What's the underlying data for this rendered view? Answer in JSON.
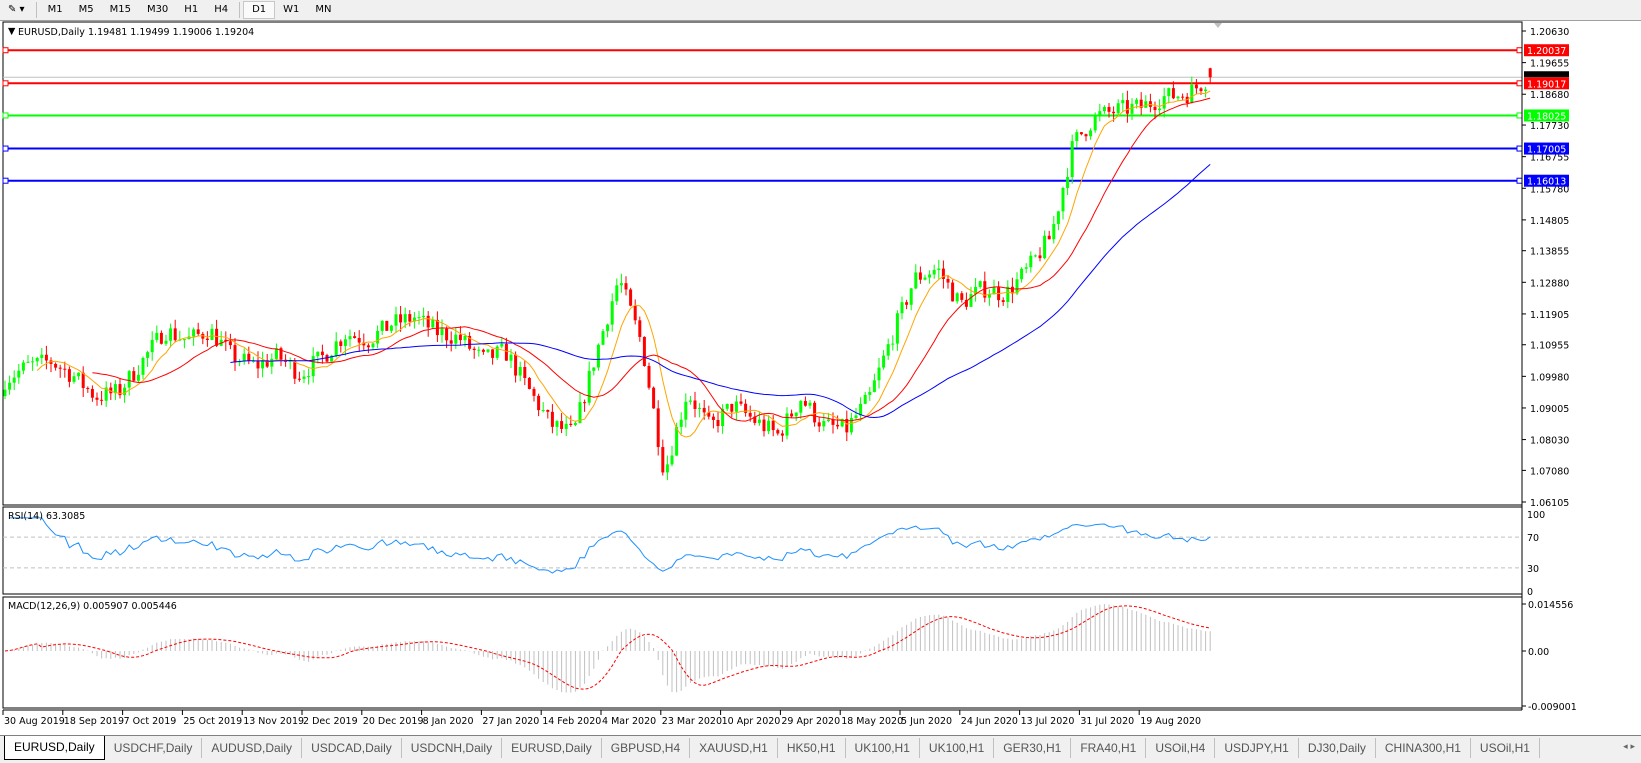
{
  "toolbar": {
    "timeframes": [
      "M1",
      "M5",
      "M15",
      "M30",
      "H1",
      "H4",
      "D1",
      "W1",
      "MN"
    ],
    "active": "D1"
  },
  "chart": {
    "symbol_label": "EURUSD,Daily",
    "ohlc_label": "1.19481 1.19499 1.19006 1.19204",
    "current_price": "1.19204",
    "price_ticks": [
      "1.20630",
      "1.19655",
      "1.18680",
      "1.17730",
      "1.16755",
      "1.15780",
      "1.14805",
      "1.13855",
      "1.12880",
      "1.11905",
      "1.10955",
      "1.09980",
      "1.09005",
      "1.08030",
      "1.07080",
      "1.06105"
    ],
    "levels": [
      {
        "price": "1.20037",
        "color": "#ff0000"
      },
      {
        "price": "1.19017",
        "color": "#ff0000"
      },
      {
        "price": "1.18025",
        "color": "#00ff00"
      },
      {
        "price": "1.17005",
        "color": "#0000ff"
      },
      {
        "price": "1.16013",
        "color": "#0000ff"
      }
    ],
    "colors": {
      "bull": "#00ff00",
      "bear": "#ff0000",
      "ma_fast": "#ffa500",
      "ma_mid": "#ff0000",
      "ma_slow": "#0000ff",
      "rsi": "#1e90ff",
      "macd_hist": "#c0c0c0",
      "macd_signal": "#ff0000"
    },
    "date_labels": [
      "30 Aug 2019",
      "18 Sep 2019",
      "7 Oct 2019",
      "25 Oct 2019",
      "13 Nov 2019",
      "2 Dec 2019",
      "20 Dec 2019",
      "8 Jan 2020",
      "27 Jan 2020",
      "14 Feb 2020",
      "4 Mar 2020",
      "23 Mar 2020",
      "10 Apr 2020",
      "29 Apr 2020",
      "18 May 2020",
      "5 Jun 2020",
      "24 Jun 2020",
      "13 Jul 2020",
      "31 Jul 2020",
      "19 Aug 2020"
    ]
  },
  "rsi": {
    "label": "RSI(14) 63.3085",
    "ticks": [
      "100",
      "70",
      "30",
      "0"
    ]
  },
  "macd": {
    "label": "MACD(12,26,9) 0.005907 0.005446",
    "ticks": [
      "0.014556",
      "0.00",
      "-0.009001"
    ]
  },
  "chart_data": {
    "type": "candlestick",
    "symbol": "EURUSD",
    "timeframe": "Daily",
    "ylim": [
      1.06105,
      1.2063
    ],
    "weekly_closes_approx": [
      1.0987,
      1.103,
      1.1045,
      1.1,
      1.0935,
      1.095,
      1.104,
      1.114,
      1.111,
      1.114,
      1.106,
      1.103,
      1.106,
      1.1005,
      1.106,
      1.113,
      1.111,
      1.116,
      1.118,
      1.1135,
      1.1115,
      1.105,
      1.1075,
      1.096,
      1.085,
      1.082,
      1.107,
      1.13,
      1.11,
      1.07,
      1.095,
      1.084,
      1.091,
      1.086,
      1.0817,
      1.093,
      1.0845,
      1.0835,
      1.093,
      1.112,
      1.13,
      1.133,
      1.122,
      1.127,
      1.125,
      1.133,
      1.143,
      1.172,
      1.18,
      1.182,
      1.183,
      1.186,
      1.187,
      1.192
    ],
    "last_bar": {
      "open": 1.19481,
      "high": 1.19499,
      "low": 1.19006,
      "close": 1.19204
    }
  },
  "tabs": [
    "EURUSD,Daily",
    "USDCHF,Daily",
    "AUDUSD,Daily",
    "USDCAD,Daily",
    "USDCNH,Daily",
    "EURUSD,Daily",
    "GBPUSD,H4",
    "XAUUSD,H1",
    "HK50,H1",
    "UK100,H1",
    "UK100,H1",
    "GER30,H1",
    "FRA40,H1",
    "USOil,H4",
    "USDJPY,H1",
    "DJ30,Daily",
    "CHINA300,H1",
    "USOil,H1"
  ],
  "active_tab": 0
}
